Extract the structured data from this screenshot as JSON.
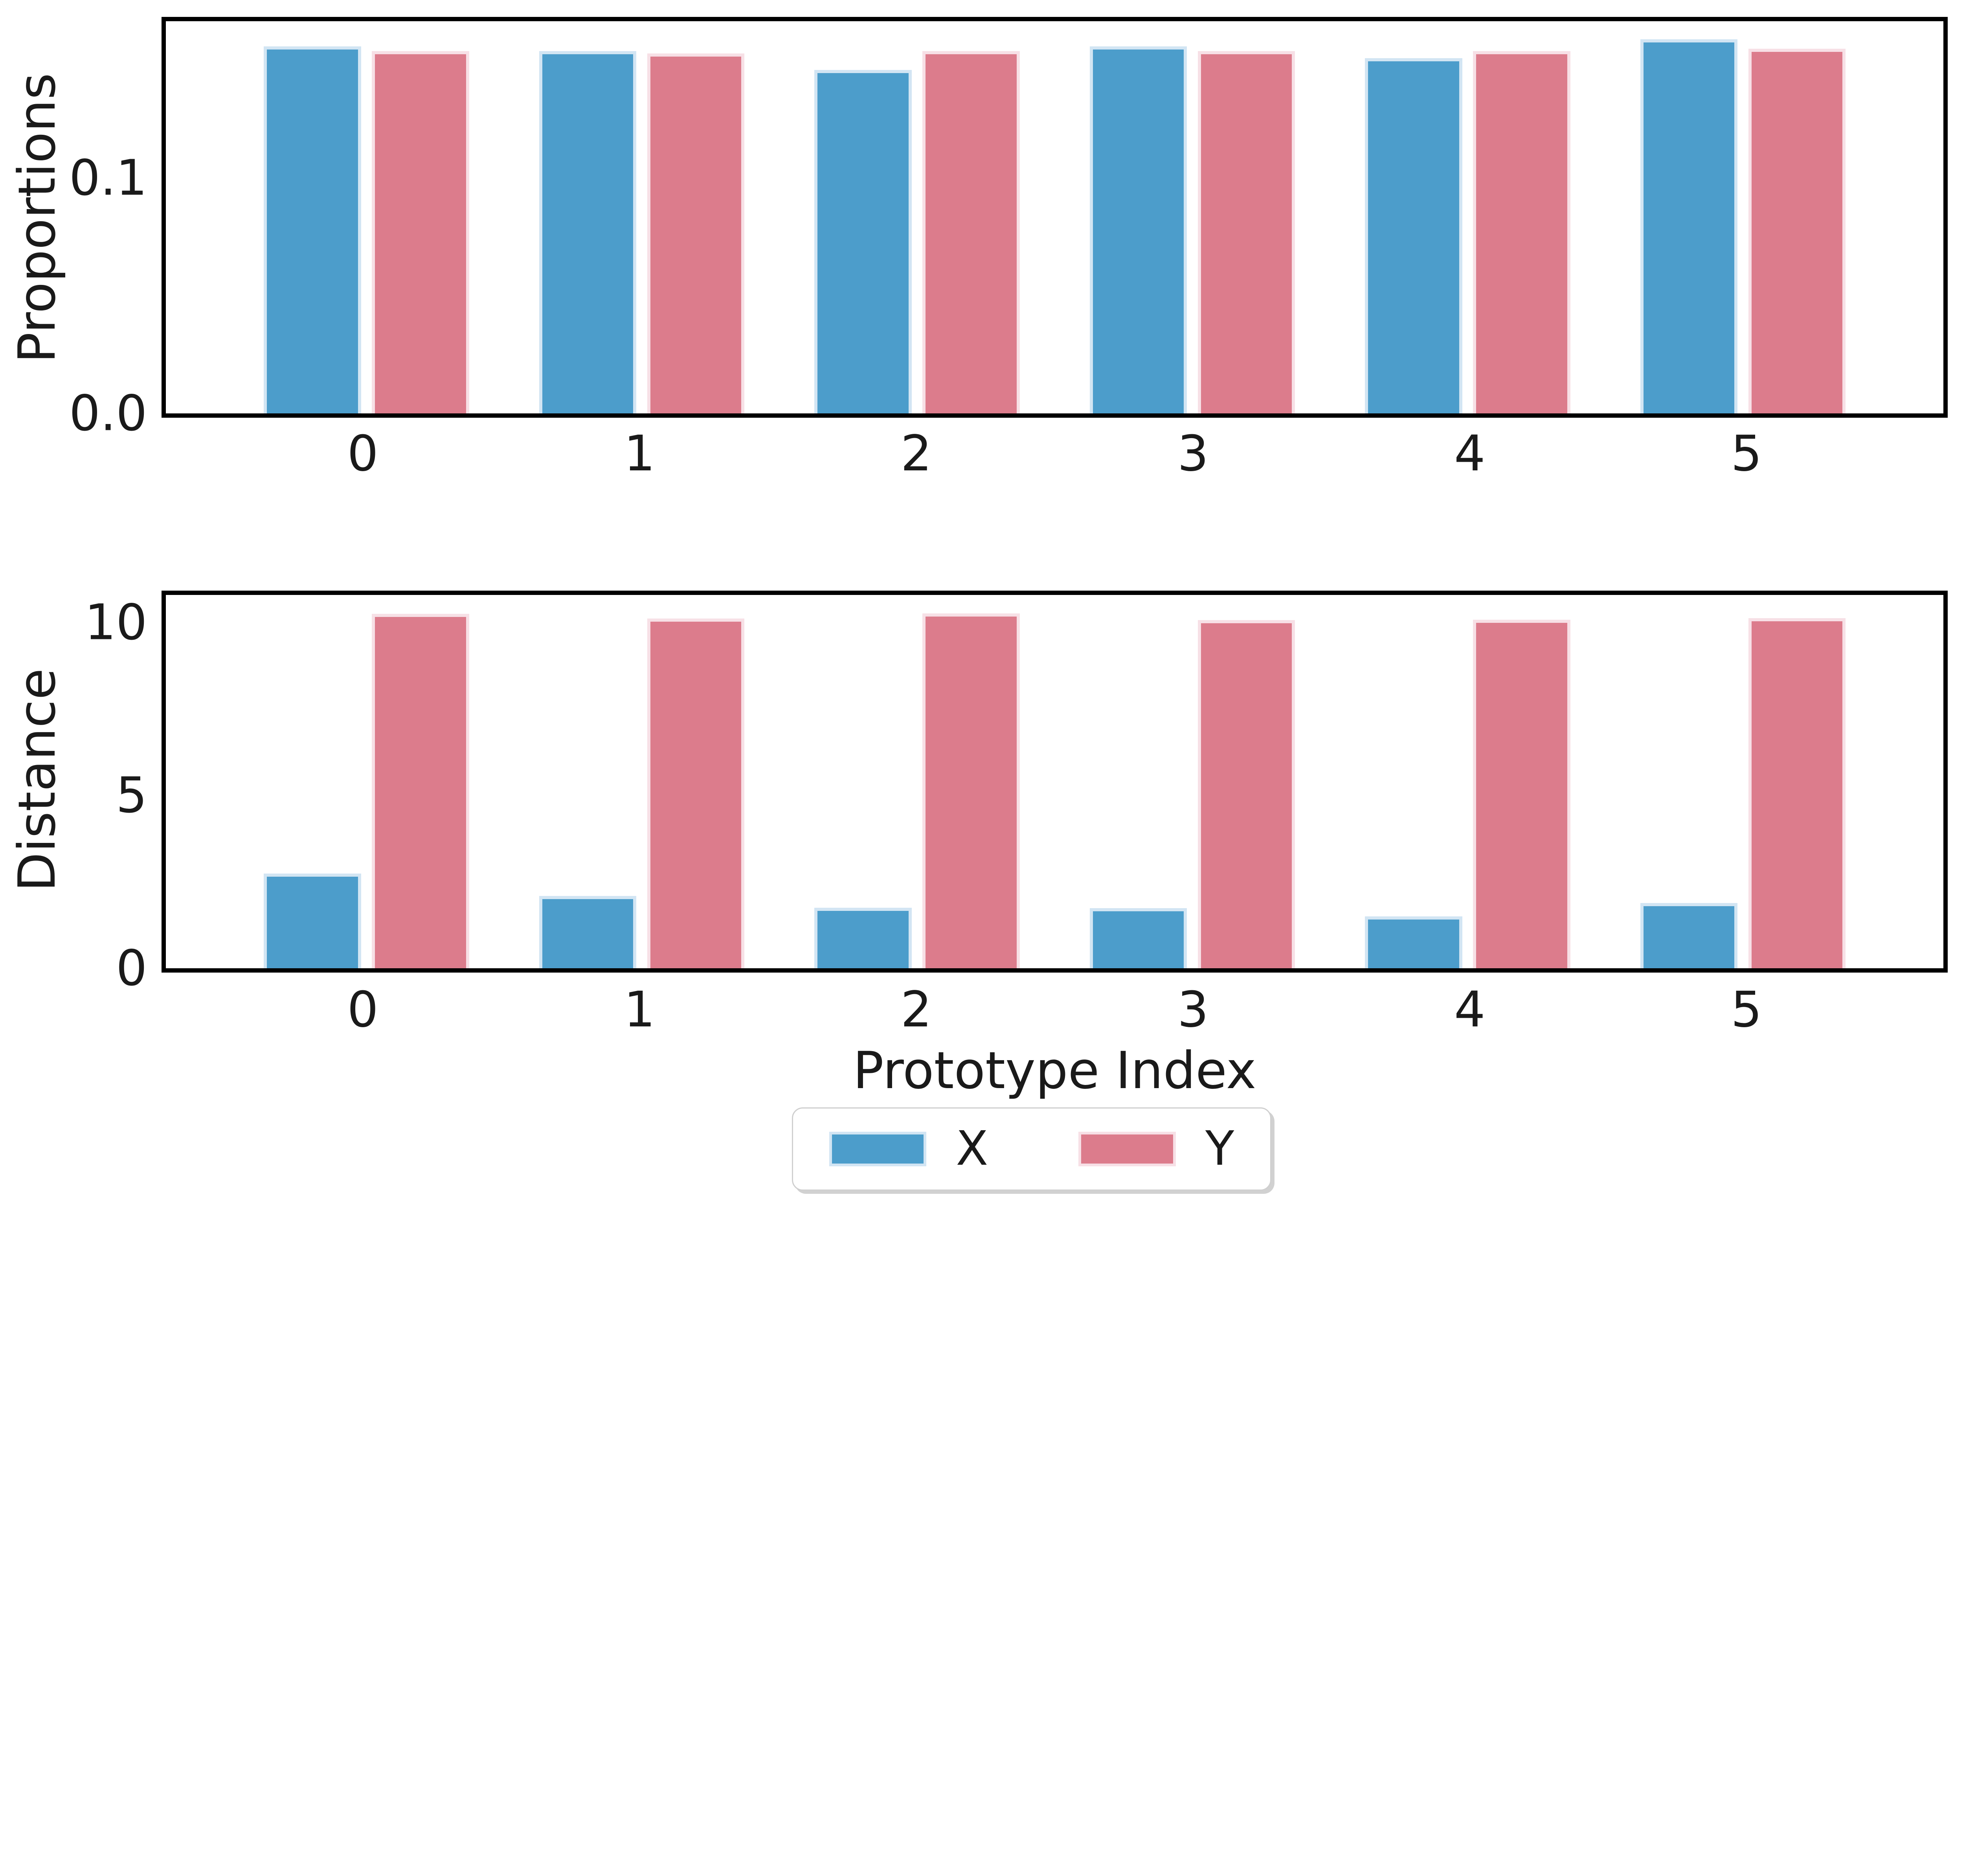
{
  "figure": {
    "background": "#ffffff",
    "text_color": "#1a1a1a",
    "spine_color": "#000000"
  },
  "legend": {
    "position": "bottom-center",
    "entries": [
      {
        "label": "X",
        "color": "#4C9DCB",
        "edge": "#D2E5F3"
      },
      {
        "label": "Y",
        "color": "#DC7C8C",
        "edge": "#F7E0E6"
      }
    ]
  },
  "chart_data": [
    {
      "type": "bar",
      "title": "",
      "ylabel": "Proportions",
      "xlabel": "",
      "categories": [
        "0",
        "1",
        "2",
        "3",
        "4",
        "5"
      ],
      "yticks": [
        0.0,
        0.1
      ],
      "ytick_labels": [
        "0.0",
        "0.1"
      ],
      "ylim": [
        0,
        0.1667
      ],
      "grid": false,
      "legend_position": "none",
      "series": [
        {
          "name": "X",
          "color": "#4C9DCB",
          "edge": "#D2E5F3",
          "values": [
            0.156,
            0.154,
            0.146,
            0.156,
            0.151,
            0.159
          ]
        },
        {
          "name": "Y",
          "color": "#DC7C8C",
          "edge": "#F7E0E6",
          "values": [
            0.154,
            0.153,
            0.154,
            0.154,
            0.154,
            0.155
          ]
        }
      ]
    },
    {
      "type": "bar",
      "title": "",
      "ylabel": "Distance",
      "xlabel": "Prototype Index",
      "categories": [
        "0",
        "1",
        "2",
        "3",
        "4",
        "5"
      ],
      "yticks": [
        0,
        5,
        10
      ],
      "ytick_labels": [
        "0",
        "5",
        "10"
      ],
      "ylim": [
        0,
        10.79
      ],
      "grid": false,
      "legend_position": "below",
      "series": [
        {
          "name": "X",
          "color": "#4C9DCB",
          "edge": "#D2E5F3",
          "values": [
            2.73,
            2.08,
            1.75,
            1.73,
            1.5,
            1.88
          ]
        },
        {
          "name": "Y",
          "color": "#DC7C8C",
          "edge": "#F7E0E6",
          "values": [
            10.24,
            10.11,
            10.26,
            10.06,
            10.07,
            10.12
          ]
        }
      ]
    }
  ]
}
